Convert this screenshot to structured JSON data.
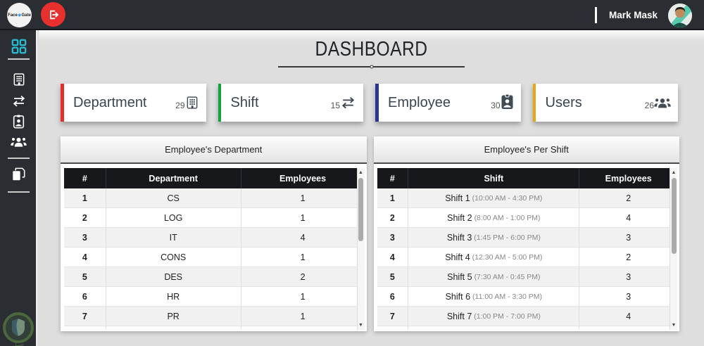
{
  "topbar": {
    "logo_left": "Face",
    "logo_mark": "◈",
    "logo_right": "Gate",
    "user_name": "Mark Mask"
  },
  "header": {
    "title": "DASHBOARD"
  },
  "cards": [
    {
      "label": "Department",
      "count": "29",
      "accent": "#e3302c",
      "icon": "building-icon"
    },
    {
      "label": "Shift",
      "count": "15",
      "accent": "#13a438",
      "icon": "swap-arrows-icon"
    },
    {
      "label": "Employee",
      "count": "30",
      "accent": "#283593",
      "icon": "id-badge-icon"
    },
    {
      "label": "Users",
      "count": "26",
      "accent": "#e7a615",
      "icon": "users-icon"
    }
  ],
  "chart_data": [
    {
      "type": "table",
      "title": "Employee's Department",
      "columns": [
        "#",
        "Department",
        "Employees"
      ],
      "rows": [
        [
          "1",
          "CS",
          "1"
        ],
        [
          "2",
          "LOG",
          "1"
        ],
        [
          "3",
          "IT",
          "4"
        ],
        [
          "4",
          "CONS",
          "1"
        ],
        [
          "5",
          "DES",
          "2"
        ],
        [
          "6",
          "HR",
          "1"
        ],
        [
          "7",
          "PR",
          "1"
        ]
      ]
    },
    {
      "type": "table",
      "title": "Employee's Per Shift",
      "columns": [
        "#",
        "Shift",
        "Employees"
      ],
      "rows": [
        [
          "1",
          "Shift 1",
          "(10:00 AM - 4:30 PM)",
          "2"
        ],
        [
          "2",
          "Shift 2",
          "(8:00 AM - 1:00 PM)",
          "4"
        ],
        [
          "3",
          "Shift 3",
          "(1:45 PM - 6:00 PM)",
          "3"
        ],
        [
          "4",
          "Shift 4",
          "(12:30 AM - 5:00 PM)",
          "2"
        ],
        [
          "5",
          "Shift 5",
          "(7:30 AM - 0:45 PM)",
          "3"
        ],
        [
          "6",
          "Shift 6",
          "(11:00 AM - 3:30 PM)",
          "3"
        ],
        [
          "7",
          "Shift 7",
          "(1:00 PM - 7:00 PM)",
          "4"
        ]
      ]
    }
  ]
}
